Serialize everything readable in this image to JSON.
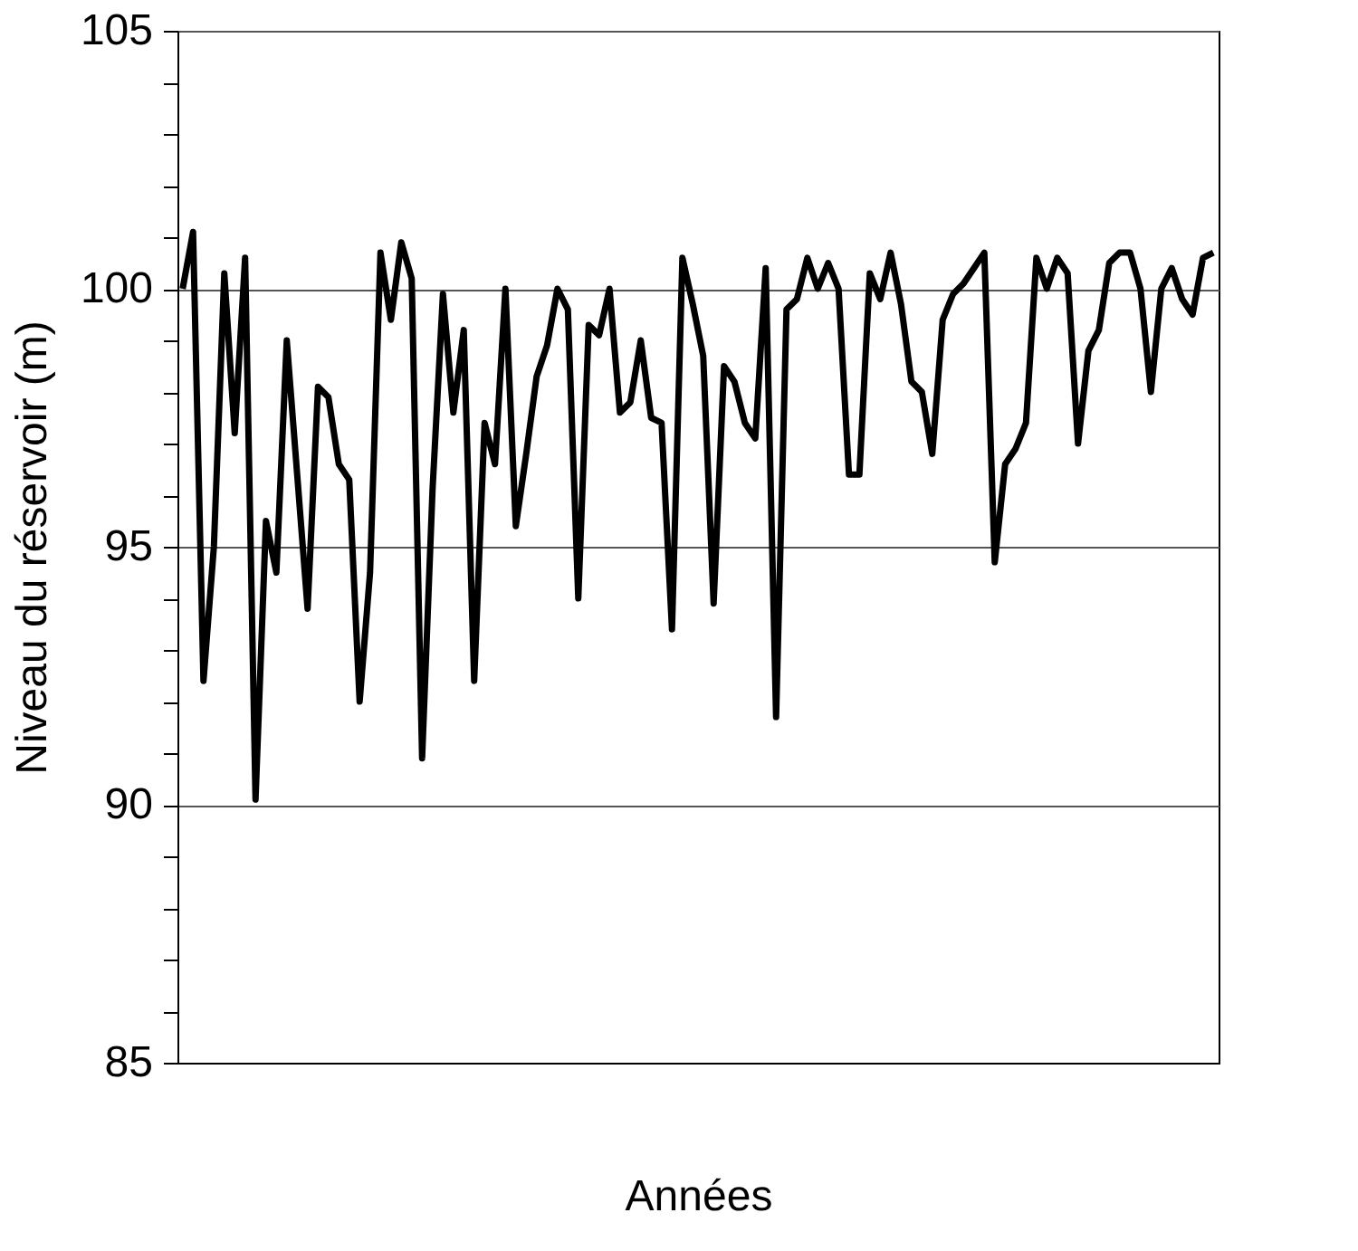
{
  "chart_data": {
    "type": "line",
    "xlabel": "Années",
    "ylabel": "Niveau du réservoir (m)",
    "categories": [
      null,
      null,
      null,
      null,
      null,
      null,
      null,
      null,
      null,
      null,
      null,
      null,
      null,
      null,
      null,
      null,
      null,
      null,
      null,
      null,
      null,
      null,
      null,
      null,
      null,
      null,
      null,
      null,
      null,
      null,
      null,
      null,
      null,
      null,
      null,
      null,
      null,
      null,
      null,
      null,
      null,
      null,
      null,
      null,
      null,
      null,
      null,
      null,
      null,
      null,
      null,
      null,
      null,
      null,
      null,
      null,
      null,
      null,
      null,
      null,
      null,
      null,
      null,
      null,
      null,
      null,
      null,
      null,
      null,
      null,
      null,
      null,
      null,
      null,
      null,
      null,
      null,
      null,
      null,
      null,
      null,
      null,
      null,
      null,
      null,
      null,
      null,
      null,
      null,
      null,
      null,
      null,
      null,
      null,
      null,
      null,
      null,
      null,
      null,
      null
    ],
    "series": [
      {
        "color": "#000000",
        "values": [
          100.0,
          101.1,
          92.4,
          95.0,
          100.3,
          97.2,
          100.6,
          90.1,
          95.5,
          94.5,
          99.0,
          96.4,
          93.8,
          98.1,
          97.9,
          96.6,
          96.3,
          92.0,
          94.5,
          100.7,
          99.4,
          100.9,
          100.2,
          90.9,
          96.1,
          99.9,
          97.6,
          99.2,
          92.4,
          97.4,
          96.6,
          100.0,
          95.4,
          96.8,
          98.3,
          98.9,
          100.0,
          99.6,
          94.0,
          99.3,
          99.1,
          100.0,
          97.6,
          97.8,
          99.0,
          97.5,
          97.4,
          93.4,
          100.6,
          99.7,
          98.7,
          93.9,
          98.5,
          98.2,
          97.4,
          97.1,
          100.4,
          91.7,
          99.6,
          99.8,
          100.6,
          100.0,
          100.5,
          100.0,
          96.4,
          96.4,
          100.3,
          99.8,
          100.7,
          99.7,
          98.2,
          98.0,
          96.8,
          99.4,
          99.9,
          100.1,
          100.4,
          100.7,
          94.7,
          96.6,
          96.9,
          97.4,
          100.6,
          100.0,
          100.6,
          100.3,
          97.0,
          98.8,
          99.2,
          100.5,
          100.7,
          100.7,
          100.0,
          98.0,
          100.0,
          100.4,
          99.8,
          99.5,
          100.6,
          100.7
        ]
      }
    ],
    "ylim": [
      85,
      105
    ],
    "yticks": [
      85,
      {
        "value": 86,
        "label": null
      },
      {
        "value": 87,
        "label": null
      },
      {
        "value": 88,
        "label": null
      },
      {
        "value": 89,
        "label": null
      },
      90,
      {
        "value": 91,
        "label": null
      },
      {
        "value": 92,
        "label": null
      },
      {
        "value": 93,
        "label": null
      },
      {
        "value": 94,
        "label": null
      },
      95,
      {
        "value": 96,
        "label": null
      },
      {
        "value": 97,
        "label": null
      },
      {
        "value": 98,
        "label": null
      },
      {
        "value": 99,
        "label": null
      },
      100,
      {
        "value": 101,
        "label": null
      },
      {
        "value": 102,
        "label": null
      },
      {
        "value": 103,
        "label": null
      },
      {
        "value": 104,
        "label": null
      },
      105
    ],
    "grid": "y",
    "tick_labels": "y",
    "marker": "none",
    "line_style": "solid"
  }
}
